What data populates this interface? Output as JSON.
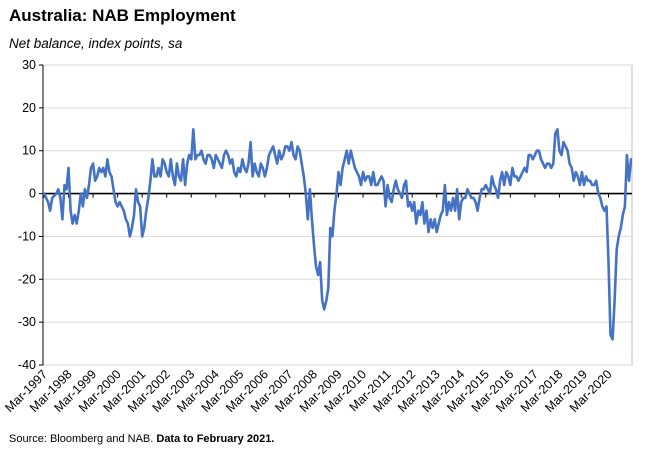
{
  "header": {
    "title": "Australia: NAB Employment",
    "subtitle": "Net balance, index points, sa"
  },
  "footer": {
    "source": "Source: Bloomberg and NAB.",
    "note": "Data to February 2021."
  },
  "colors": {
    "series": "#4472C4",
    "axis": "#000000",
    "grid": "#d9d9d9"
  },
  "chart_data": {
    "type": "line",
    "title": "Australia: NAB Employment",
    "subtitle": "Net balance, index points, sa",
    "xlabel": "",
    "ylabel": "",
    "ylim": [
      -40,
      30
    ],
    "yticks": [
      -40,
      -30,
      -20,
      -10,
      0,
      10,
      20,
      30
    ],
    "xlim": [
      "1997-03",
      "2021-02"
    ],
    "xticks": [
      "Mar-1997",
      "Mar-1998",
      "Mar-1999",
      "Mar-2000",
      "Mar-2001",
      "Mar-2002",
      "Mar-2003",
      "Mar-2004",
      "Mar-2005",
      "Mar-2006",
      "Mar-2007",
      "Mar-2008",
      "Mar-2009",
      "Mar-2010",
      "Mar-2011",
      "Mar-2012",
      "Mar-2013",
      "Mar-2014",
      "Mar-2015",
      "Mar-2016",
      "Mar-2017",
      "Mar-2018",
      "Mar-2019",
      "Mar-2020"
    ],
    "grid": "horizontal",
    "legend": "none",
    "series": [
      {
        "points": [
          [
            "1997-03",
            0
          ],
          [
            "1997-05",
            -2
          ],
          [
            "1997-06",
            -4
          ],
          [
            "1997-07",
            -1
          ],
          [
            "1997-09",
            0
          ],
          [
            "1997-10",
            1
          ],
          [
            "1997-11",
            -1
          ],
          [
            "1997-12",
            -6
          ],
          [
            "1998-01",
            2
          ],
          [
            "1998-02",
            1
          ],
          [
            "1998-03",
            6
          ],
          [
            "1998-04",
            -4
          ],
          [
            "1998-05",
            -7
          ],
          [
            "1998-06",
            -5
          ],
          [
            "1998-07",
            -7
          ],
          [
            "1998-08",
            -4
          ],
          [
            "1998-09",
            0
          ],
          [
            "1998-10",
            -3
          ],
          [
            "1998-11",
            1
          ],
          [
            "1998-12",
            -1
          ],
          [
            "1999-01",
            2
          ],
          [
            "1999-02",
            6
          ],
          [
            "1999-03",
            7
          ],
          [
            "1999-04",
            3
          ],
          [
            "1999-05",
            4
          ],
          [
            "1999-06",
            6
          ],
          [
            "1999-07",
            5
          ],
          [
            "1999-08",
            6
          ],
          [
            "1999-09",
            4
          ],
          [
            "1999-10",
            8
          ],
          [
            "1999-11",
            5
          ],
          [
            "1999-12",
            4
          ],
          [
            "2000-01",
            1
          ],
          [
            "2000-02",
            -2
          ],
          [
            "2000-03",
            -3
          ],
          [
            "2000-04",
            -2
          ],
          [
            "2000-05",
            -3
          ],
          [
            "2000-06",
            -4
          ],
          [
            "2000-07",
            -6
          ],
          [
            "2000-08",
            -7
          ],
          [
            "2000-09",
            -10
          ],
          [
            "2000-10",
            -8
          ],
          [
            "2000-11",
            -5
          ],
          [
            "2000-12",
            1
          ],
          [
            "2001-01",
            -2
          ],
          [
            "2001-02",
            -3
          ],
          [
            "2001-03",
            -10
          ],
          [
            "2001-04",
            -8
          ],
          [
            "2001-05",
            -4
          ],
          [
            "2001-06",
            -1
          ],
          [
            "2001-07",
            3
          ],
          [
            "2001-08",
            8
          ],
          [
            "2001-09",
            4
          ],
          [
            "2001-10",
            4
          ],
          [
            "2001-11",
            6
          ],
          [
            "2001-12",
            4
          ],
          [
            "2002-01",
            8
          ],
          [
            "2002-02",
            7
          ],
          [
            "2002-03",
            5
          ],
          [
            "2002-04",
            4
          ],
          [
            "2002-05",
            8
          ],
          [
            "2002-06",
            4
          ],
          [
            "2002-07",
            2
          ],
          [
            "2002-08",
            7
          ],
          [
            "2002-09",
            4
          ],
          [
            "2002-10",
            3
          ],
          [
            "2002-11",
            8
          ],
          [
            "2002-12",
            2
          ],
          [
            "2003-01",
            7
          ],
          [
            "2003-02",
            9
          ],
          [
            "2003-03",
            8
          ],
          [
            "2003-04",
            15
          ],
          [
            "2003-05",
            8
          ],
          [
            "2003-06",
            9
          ],
          [
            "2003-07",
            9
          ],
          [
            "2003-08",
            10
          ],
          [
            "2003-09",
            8
          ],
          [
            "2003-10",
            7
          ],
          [
            "2003-11",
            9
          ],
          [
            "2003-12",
            9
          ],
          [
            "2004-01",
            8
          ],
          [
            "2004-02",
            6
          ],
          [
            "2004-03",
            9
          ],
          [
            "2004-04",
            8
          ],
          [
            "2004-05",
            7
          ],
          [
            "2004-06",
            6
          ],
          [
            "2004-07",
            9
          ],
          [
            "2004-08",
            10
          ],
          [
            "2004-09",
            9
          ],
          [
            "2004-10",
            7
          ],
          [
            "2004-11",
            8
          ],
          [
            "2004-12",
            5
          ],
          [
            "2005-01",
            4
          ],
          [
            "2005-02",
            6
          ],
          [
            "2005-03",
            5
          ],
          [
            "2005-04",
            8
          ],
          [
            "2005-05",
            6
          ],
          [
            "2005-06",
            5
          ],
          [
            "2005-07",
            7
          ],
          [
            "2005-08",
            12
          ],
          [
            "2005-09",
            4
          ],
          [
            "2005-10",
            7
          ],
          [
            "2005-11",
            5
          ],
          [
            "2005-12",
            4
          ],
          [
            "2006-01",
            7
          ],
          [
            "2006-02",
            6
          ],
          [
            "2006-03",
            4
          ],
          [
            "2006-04",
            6
          ],
          [
            "2006-05",
            9
          ],
          [
            "2006-06",
            10
          ],
          [
            "2006-07",
            11
          ],
          [
            "2006-08",
            9
          ],
          [
            "2006-09",
            7
          ],
          [
            "2006-10",
            10
          ],
          [
            "2006-11",
            8
          ],
          [
            "2006-12",
            9
          ],
          [
            "2007-01",
            11
          ],
          [
            "2007-02",
            11
          ],
          [
            "2007-03",
            10
          ],
          [
            "2007-04",
            12
          ],
          [
            "2007-05",
            9
          ],
          [
            "2007-06",
            8
          ],
          [
            "2007-07",
            11
          ],
          [
            "2007-08",
            10
          ],
          [
            "2007-09",
            7
          ],
          [
            "2007-10",
            4
          ],
          [
            "2007-11",
            0
          ],
          [
            "2007-12",
            -6
          ],
          [
            "2008-01",
            1
          ],
          [
            "2008-02",
            -6
          ],
          [
            "2008-03",
            -12
          ],
          [
            "2008-04",
            -17
          ],
          [
            "2008-05",
            -19
          ],
          [
            "2008-06",
            -16
          ],
          [
            "2008-07",
            -25
          ],
          [
            "2008-08",
            -27
          ],
          [
            "2008-09",
            -25
          ],
          [
            "2008-10",
            -22
          ],
          [
            "2008-11",
            -8
          ],
          [
            "2008-12",
            -10
          ],
          [
            "2009-01",
            -4
          ],
          [
            "2009-02",
            0
          ],
          [
            "2009-03",
            5
          ],
          [
            "2009-04",
            2
          ],
          [
            "2009-05",
            6
          ],
          [
            "2009-06",
            8
          ],
          [
            "2009-07",
            10
          ],
          [
            "2009-08",
            7
          ],
          [
            "2009-09",
            10
          ],
          [
            "2009-10",
            8
          ],
          [
            "2009-11",
            6
          ],
          [
            "2009-12",
            5
          ],
          [
            "2010-01",
            4
          ],
          [
            "2010-02",
            2
          ],
          [
            "2010-03",
            5
          ],
          [
            "2010-04",
            3
          ],
          [
            "2010-05",
            4
          ],
          [
            "2010-06",
            4
          ],
          [
            "2010-07",
            2
          ],
          [
            "2010-08",
            5
          ],
          [
            "2010-09",
            2
          ],
          [
            "2010-10",
            2
          ],
          [
            "2010-11",
            3
          ],
          [
            "2010-12",
            4
          ],
          [
            "2011-01",
            3
          ],
          [
            "2011-02",
            -3
          ],
          [
            "2011-03",
            2
          ],
          [
            "2011-04",
            -1
          ],
          [
            "2011-05",
            -2
          ],
          [
            "2011-06",
            1
          ],
          [
            "2011-07",
            3
          ],
          [
            "2011-08",
            1
          ],
          [
            "2011-09",
            0
          ],
          [
            "2011-10",
            -1
          ],
          [
            "2011-11",
            2
          ],
          [
            "2011-12",
            3
          ],
          [
            "2012-01",
            -3
          ],
          [
            "2012-02",
            -2
          ],
          [
            "2012-03",
            -4
          ],
          [
            "2012-04",
            -2
          ],
          [
            "2012-05",
            -7
          ],
          [
            "2012-06",
            -4
          ],
          [
            "2012-07",
            -5
          ],
          [
            "2012-08",
            -2
          ],
          [
            "2012-09",
            -7
          ],
          [
            "2012-10",
            -4
          ],
          [
            "2012-11",
            -9
          ],
          [
            "2012-12",
            -6
          ],
          [
            "2013-01",
            -8
          ],
          [
            "2013-02",
            -6
          ],
          [
            "2013-03",
            -9
          ],
          [
            "2013-04",
            -7
          ],
          [
            "2013-05",
            -5
          ],
          [
            "2013-06",
            -4
          ],
          [
            "2013-07",
            2
          ],
          [
            "2013-08",
            -5
          ],
          [
            "2013-09",
            -2
          ],
          [
            "2013-10",
            -4
          ],
          [
            "2013-11",
            -1
          ],
          [
            "2013-12",
            -4
          ],
          [
            "2014-01",
            1
          ],
          [
            "2014-02",
            -6
          ],
          [
            "2014-03",
            -2
          ],
          [
            "2014-04",
            -1
          ],
          [
            "2014-05",
            -1
          ],
          [
            "2014-06",
            1
          ],
          [
            "2014-07",
            0
          ],
          [
            "2014-08",
            -1
          ],
          [
            "2014-09",
            -1
          ],
          [
            "2014-10",
            -2
          ],
          [
            "2014-11",
            -4
          ],
          [
            "2014-12",
            -1
          ],
          [
            "2015-01",
            1
          ],
          [
            "2015-02",
            1
          ],
          [
            "2015-03",
            2
          ],
          [
            "2015-04",
            1
          ],
          [
            "2015-05",
            0
          ],
          [
            "2015-06",
            4
          ],
          [
            "2015-07",
            2
          ],
          [
            "2015-08",
            1
          ],
          [
            "2015-09",
            -1
          ],
          [
            "2015-10",
            3
          ],
          [
            "2015-11",
            5
          ],
          [
            "2015-12",
            2
          ],
          [
            "2016-01",
            5
          ],
          [
            "2016-02",
            4
          ],
          [
            "2016-03",
            2
          ],
          [
            "2016-04",
            6
          ],
          [
            "2016-05",
            4
          ],
          [
            "2016-06",
            4
          ],
          [
            "2016-07",
            3
          ],
          [
            "2016-08",
            4
          ],
          [
            "2016-09",
            5
          ],
          [
            "2016-10",
            6
          ],
          [
            "2016-11",
            5
          ],
          [
            "2016-12",
            9
          ],
          [
            "2017-01",
            9
          ],
          [
            "2017-02",
            8
          ],
          [
            "2017-03",
            9
          ],
          [
            "2017-04",
            10
          ],
          [
            "2017-05",
            10
          ],
          [
            "2017-06",
            8
          ],
          [
            "2017-07",
            7
          ],
          [
            "2017-08",
            6
          ],
          [
            "2017-09",
            7
          ],
          [
            "2017-10",
            7
          ],
          [
            "2017-11",
            6
          ],
          [
            "2017-12",
            7
          ],
          [
            "2018-01",
            14
          ],
          [
            "2018-02",
            15
          ],
          [
            "2018-03",
            10
          ],
          [
            "2018-04",
            9
          ],
          [
            "2018-05",
            12
          ],
          [
            "2018-06",
            11
          ],
          [
            "2018-07",
            10
          ],
          [
            "2018-08",
            7
          ],
          [
            "2018-09",
            6
          ],
          [
            "2018-10",
            3
          ],
          [
            "2018-11",
            5
          ],
          [
            "2018-12",
            4
          ],
          [
            "2019-01",
            2
          ],
          [
            "2019-02",
            5
          ],
          [
            "2019-03",
            2
          ],
          [
            "2019-04",
            4
          ],
          [
            "2019-05",
            3
          ],
          [
            "2019-06",
            3
          ],
          [
            "2019-07",
            2
          ],
          [
            "2019-08",
            2
          ],
          [
            "2019-09",
            3
          ],
          [
            "2019-10",
            0
          ],
          [
            "2019-11",
            -1
          ],
          [
            "2019-12",
            -3
          ],
          [
            "2020-01",
            -4
          ],
          [
            "2020-02",
            -3
          ],
          [
            "2020-03",
            -16
          ],
          [
            "2020-04",
            -33
          ],
          [
            "2020-05",
            -34
          ],
          [
            "2020-06",
            -25
          ],
          [
            "2020-07",
            -13
          ],
          [
            "2020-08",
            -10
          ],
          [
            "2020-09",
            -8
          ],
          [
            "2020-10",
            -5
          ],
          [
            "2020-11",
            -3
          ],
          [
            "2020-12",
            9
          ],
          [
            "2021-01",
            3
          ],
          [
            "2021-02",
            8
          ]
        ]
      }
    ]
  }
}
